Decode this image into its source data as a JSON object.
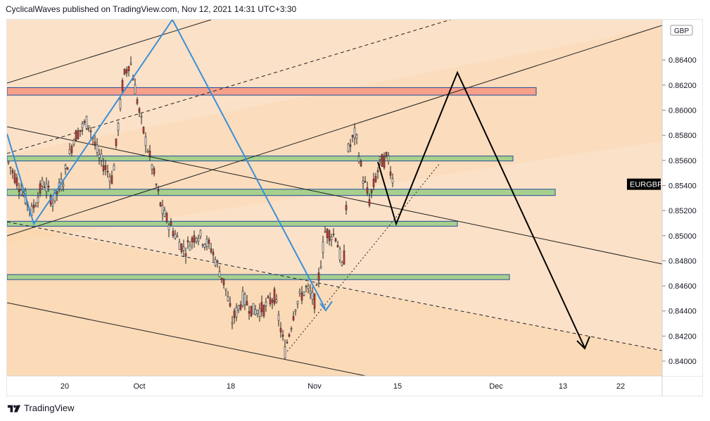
{
  "header": {
    "publisher_line": "CyclicalWaves published on TradingView.com, Nov 12, 2021 14:31 UTC+3:30"
  },
  "footer": {
    "brand": "TradingView"
  },
  "chart_data": {
    "type": "candlestick",
    "symbol": "EURGBP",
    "currency_label": "GBP",
    "y_ticks": [
      "0.84000",
      "0.84200",
      "0.84400",
      "0.84600",
      "0.84800",
      "0.85000",
      "0.85200",
      "0.85400",
      "0.85600",
      "0.85800",
      "0.86000",
      "0.86200",
      "0.86400"
    ],
    "x_ticks": [
      "20",
      "Oct",
      "18",
      "Nov",
      "15",
      "Dec",
      "13",
      "22"
    ],
    "ylim": [
      0.8389,
      0.8668
    ],
    "last_price_label": "EURGBP",
    "colors": {
      "background": "#fbe1c7",
      "up_candle": "#ffffff",
      "down_candle": "#e53935",
      "resistance_zone": "#f7a08a",
      "support_zone": "#a8d08d",
      "projection_blue": "#3a8fd9",
      "projection_black": "#000000"
    },
    "zones": [
      {
        "kind": "resistance",
        "low": 0.8612,
        "high": 0.8618
      },
      {
        "kind": "support",
        "low": 0.856,
        "high": 0.8563
      },
      {
        "kind": "support",
        "low": 0.8532,
        "high": 0.8537
      },
      {
        "kind": "support",
        "low": 0.8508,
        "high": 0.8511
      },
      {
        "kind": "support",
        "low": 0.8465,
        "high": 0.8469
      }
    ]
  }
}
